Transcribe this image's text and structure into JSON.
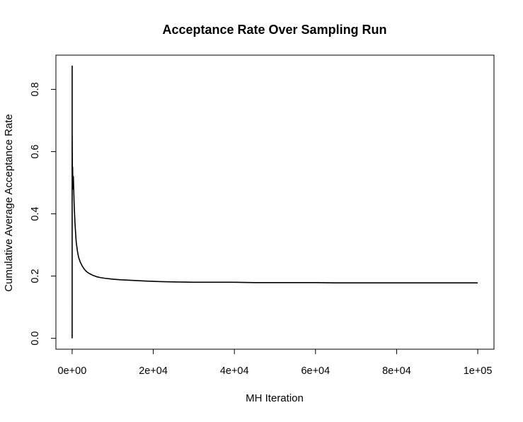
{
  "chart_data": {
    "type": "line",
    "title": "Acceptance Rate Over Sampling Run",
    "xlabel": "MH Iteration",
    "ylabel": "Cumulative Average Acceptance Rate",
    "xlim": [
      -4000,
      104000
    ],
    "ylim": [
      -0.035,
      0.91
    ],
    "x_ticks": [
      0,
      20000,
      40000,
      60000,
      80000,
      100000
    ],
    "x_tick_labels": [
      "0e+00",
      "2e+04",
      "4e+04",
      "6e+04",
      "8e+04",
      "1e+05"
    ],
    "y_ticks": [
      0.0,
      0.2,
      0.4,
      0.6,
      0.8
    ],
    "y_tick_labels": [
      "0.0",
      "0.2",
      "0.4",
      "0.6",
      "0.8"
    ],
    "grid": false,
    "legend": "none",
    "series": [
      {
        "color": "#000000",
        "x": [
          1,
          2,
          3,
          5,
          8,
          12,
          20,
          35,
          50,
          80,
          120,
          200,
          300,
          500,
          700,
          1000,
          1300,
          1600,
          2000,
          2500,
          3000,
          3500,
          4000,
          5000,
          6000,
          7000,
          8000,
          10000,
          12000,
          15000,
          18000,
          22000,
          26000,
          30000,
          35000,
          40000,
          45000,
          50000,
          55000,
          60000,
          65000,
          70000,
          75000,
          80000,
          85000,
          90000,
          95000,
          100000
        ],
        "y": [
          0.0,
          0.5,
          0.67,
          0.6,
          0.875,
          0.58,
          0.65,
          0.6,
          0.56,
          0.5,
          0.55,
          0.48,
          0.52,
          0.43,
          0.37,
          0.31,
          0.28,
          0.26,
          0.245,
          0.232,
          0.222,
          0.215,
          0.21,
          0.203,
          0.198,
          0.195,
          0.193,
          0.19,
          0.188,
          0.186,
          0.184,
          0.182,
          0.181,
          0.18,
          0.18,
          0.18,
          0.179,
          0.179,
          0.179,
          0.179,
          0.178,
          0.178,
          0.178,
          0.178,
          0.178,
          0.178,
          0.178,
          0.178
        ]
      }
    ]
  }
}
